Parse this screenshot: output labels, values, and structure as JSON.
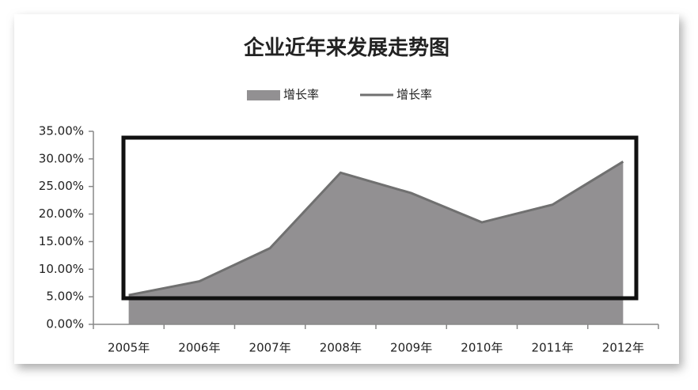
{
  "chart_data": {
    "type": "area",
    "title": "企业近年来发展走势图",
    "categories": [
      "2005年",
      "2006年",
      "2007年",
      "2008年",
      "2009年",
      "2010年",
      "2011年",
      "2012年"
    ],
    "series": [
      {
        "name": "增长率",
        "type": "area",
        "color": "#929092",
        "values": [
          5.3,
          7.8,
          13.8,
          27.5,
          23.8,
          18.5,
          21.7,
          29.5
        ]
      },
      {
        "name": "增长率",
        "type": "line",
        "color": "#707070",
        "values": [
          5.3,
          7.8,
          13.8,
          27.5,
          23.8,
          18.5,
          21.7,
          29.5
        ]
      }
    ],
    "ylim": [
      0,
      35
    ],
    "yticks": [
      {
        "value": 0,
        "label": "0.00%"
      },
      {
        "value": 5,
        "label": "5.00%"
      },
      {
        "value": 10,
        "label": "10.00%"
      },
      {
        "value": 15,
        "label": "15.00%"
      },
      {
        "value": 20,
        "label": "20.00%"
      },
      {
        "value": 25,
        "label": "25.00%"
      },
      {
        "value": 30,
        "label": "30.00%"
      },
      {
        "value": 35,
        "label": "35.00%"
      }
    ],
    "legend": "top"
  }
}
